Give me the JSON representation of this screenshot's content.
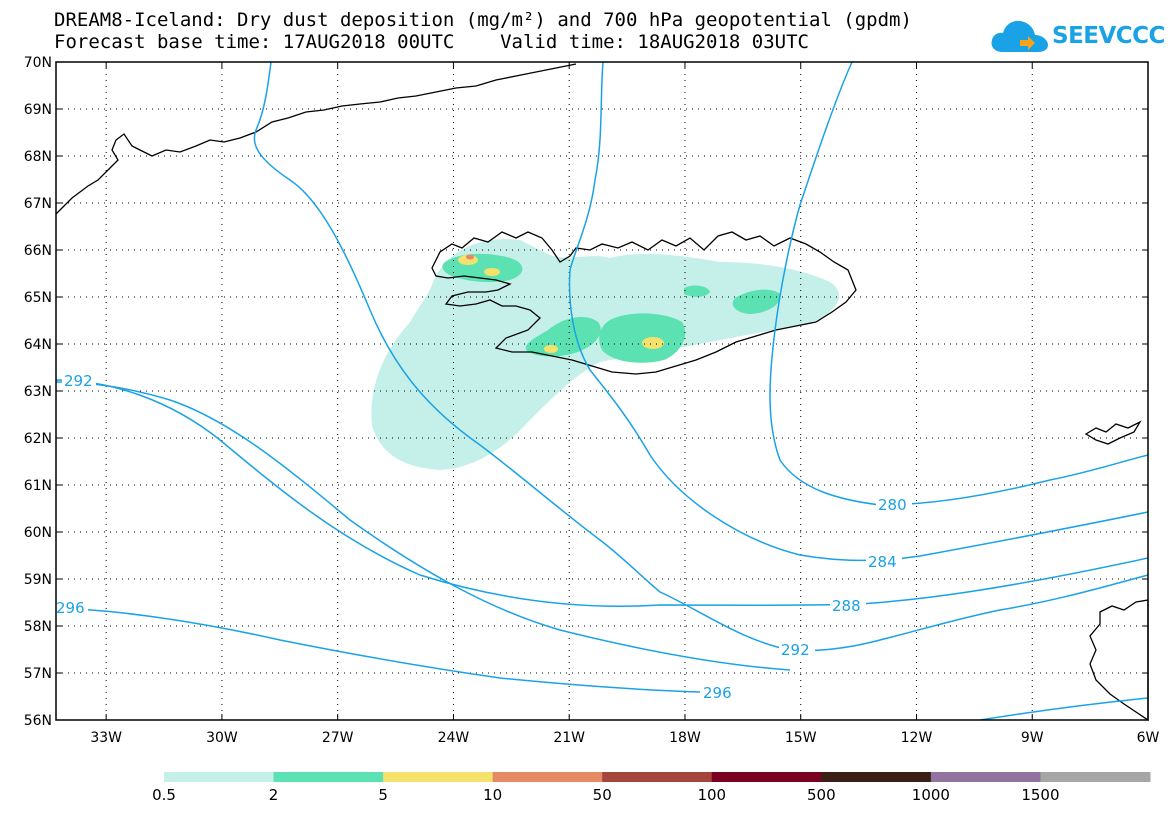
{
  "title": {
    "line1": "DREAM8-Iceland: Dry dust deposition (mg/m²) and 700 hPa geopotential (gpdm)",
    "line2": "Forecast base time: 17AUG2018 00UTC    Valid time: 18AUG2018 03UTC"
  },
  "logo": {
    "text": "SEEVCCC",
    "color": "#1aa2e6"
  },
  "axes": {
    "lat_labels": [
      "70N",
      "69N",
      "68N",
      "67N",
      "66N",
      "65N",
      "64N",
      "63N",
      "62N",
      "61N",
      "60N",
      "59N",
      "58N",
      "57N",
      "56N"
    ],
    "lon_labels": [
      "33W",
      "30W",
      "27W",
      "24W",
      "21W",
      "18W",
      "15W",
      "12W",
      "9W",
      "6W"
    ],
    "lat_values": [
      70,
      69,
      68,
      67,
      66,
      65,
      64,
      63,
      62,
      61,
      60,
      59,
      58,
      57,
      56
    ],
    "lon_values": [
      -33,
      -30,
      -27,
      -24,
      -21,
      -18,
      -15,
      -12,
      -9,
      -6
    ]
  },
  "contours": {
    "color": "#1aa2e6",
    "labels": [
      "292",
      "296",
      "280",
      "284",
      "288",
      "292",
      "296"
    ]
  },
  "colorbar": {
    "colors": [
      "#c5f0ea",
      "#5be1b2",
      "#f4e26c",
      "#e58a63",
      "#a5463c",
      "#7b0123",
      "#3b1f14",
      "#92739f",
      "#a6a6a6"
    ],
    "labels": [
      "0.5",
      "2",
      "5",
      "10",
      "50",
      "100",
      "500",
      "1000",
      "1500"
    ]
  },
  "fill_colors": {
    "light": "#c5f0ea",
    "medium": "#5be1b2",
    "high": "#f4e26c",
    "peak": "#e58a63"
  }
}
